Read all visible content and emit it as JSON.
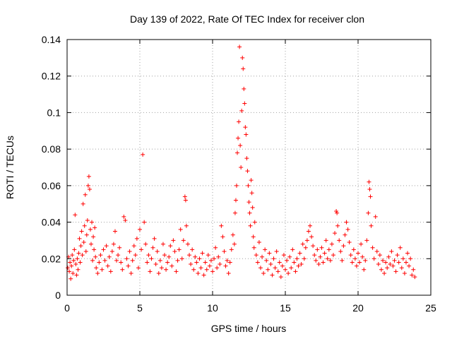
{
  "chart_data": {
    "type": "scatter",
    "title": "Day 139 of 2022, Rate Of TEC Index for receiver clon",
    "xlabel": "GPS time / hours",
    "ylabel": "ROTI / TECUs",
    "xlim": [
      0,
      25
    ],
    "ylim": [
      0,
      0.14
    ],
    "xticks": [
      0,
      5,
      10,
      15,
      20,
      25
    ],
    "yticks": [
      0,
      0.02,
      0.04,
      0.06,
      0.08,
      0.1,
      0.12,
      0.14
    ],
    "xtick_labels": [
      "0",
      "5",
      "10",
      "15",
      "20",
      "25"
    ],
    "ytick_labels": [
      "0",
      "0.02",
      "0.04",
      "0.06",
      "0.08",
      "0.1",
      "0.12",
      "0.14"
    ],
    "grid": true,
    "marker": "+",
    "marker_color": "#ff0000",
    "points": [
      [
        0.05,
        0.015
      ],
      [
        0.1,
        0.021
      ],
      [
        0.15,
        0.013
      ],
      [
        0.2,
        0.018
      ],
      [
        0.25,
        0.009
      ],
      [
        0.3,
        0.016
      ],
      [
        0.35,
        0.022
      ],
      [
        0.4,
        0.012
      ],
      [
        0.45,
        0.019
      ],
      [
        0.5,
        0.025
      ],
      [
        0.55,
        0.044
      ],
      [
        0.6,
        0.017
      ],
      [
        0.65,
        0.011
      ],
      [
        0.7,
        0.02
      ],
      [
        0.75,
        0.014
      ],
      [
        0.8,
        0.023
      ],
      [
        0.85,
        0.031
      ],
      [
        0.9,
        0.018
      ],
      [
        0.95,
        0.027
      ],
      [
        1.0,
        0.035
      ],
      [
        1.05,
        0.022
      ],
      [
        1.1,
        0.05
      ],
      [
        1.15,
        0.029
      ],
      [
        1.2,
        0.038
      ],
      [
        1.25,
        0.055
      ],
      [
        1.3,
        0.024
      ],
      [
        1.35,
        0.033
      ],
      [
        1.4,
        0.041
      ],
      [
        1.45,
        0.06
      ],
      [
        1.5,
        0.065
      ],
      [
        1.55,
        0.058
      ],
      [
        1.6,
        0.036
      ],
      [
        1.65,
        0.028
      ],
      [
        1.7,
        0.04
      ],
      [
        1.75,
        0.019
      ],
      [
        1.8,
        0.032
      ],
      [
        1.85,
        0.025
      ],
      [
        1.9,
        0.037
      ],
      [
        1.95,
        0.021
      ],
      [
        2.0,
        0.015
      ],
      [
        2.1,
        0.012
      ],
      [
        2.2,
        0.018
      ],
      [
        2.3,
        0.022
      ],
      [
        2.4,
        0.014
      ],
      [
        2.5,
        0.025
      ],
      [
        2.6,
        0.019
      ],
      [
        2.7,
        0.027
      ],
      [
        2.8,
        0.016
      ],
      [
        2.9,
        0.021
      ],
      [
        3.0,
        0.013
      ],
      [
        3.1,
        0.024
      ],
      [
        3.2,
        0.028
      ],
      [
        3.3,
        0.035
      ],
      [
        3.4,
        0.019
      ],
      [
        3.5,
        0.022
      ],
      [
        3.6,
        0.026
      ],
      [
        3.7,
        0.018
      ],
      [
        3.8,
        0.014
      ],
      [
        3.9,
        0.043
      ],
      [
        4.0,
        0.041
      ],
      [
        4.1,
        0.02
      ],
      [
        4.2,
        0.016
      ],
      [
        4.3,
        0.024
      ],
      [
        4.4,
        0.012
      ],
      [
        4.5,
        0.019
      ],
      [
        4.6,
        0.027
      ],
      [
        4.7,
        0.022
      ],
      [
        4.8,
        0.031
      ],
      [
        4.9,
        0.015
      ],
      [
        5.0,
        0.036
      ],
      [
        5.1,
        0.025
      ],
      [
        5.2,
        0.077
      ],
      [
        5.3,
        0.04
      ],
      [
        5.4,
        0.028
      ],
      [
        5.5,
        0.018
      ],
      [
        5.6,
        0.022
      ],
      [
        5.7,
        0.013
      ],
      [
        5.8,
        0.02
      ],
      [
        5.9,
        0.026
      ],
      [
        6.0,
        0.031
      ],
      [
        6.1,
        0.017
      ],
      [
        6.2,
        0.024
      ],
      [
        6.3,
        0.012
      ],
      [
        6.4,
        0.019
      ],
      [
        6.5,
        0.015
      ],
      [
        6.6,
        0.028
      ],
      [
        6.7,
        0.022
      ],
      [
        6.8,
        0.014
      ],
      [
        6.9,
        0.018
      ],
      [
        7.0,
        0.021
      ],
      [
        7.1,
        0.027
      ],
      [
        7.2,
        0.016
      ],
      [
        7.3,
        0.03
      ],
      [
        7.4,
        0.024
      ],
      [
        7.5,
        0.013
      ],
      [
        7.6,
        0.019
      ],
      [
        7.7,
        0.025
      ],
      [
        7.8,
        0.036
      ],
      [
        7.9,
        0.02
      ],
      [
        8.0,
        0.03
      ],
      [
        8.1,
        0.054
      ],
      [
        8.15,
        0.052
      ],
      [
        8.2,
        0.038
      ],
      [
        8.3,
        0.028
      ],
      [
        8.4,
        0.022
      ],
      [
        8.5,
        0.017
      ],
      [
        8.6,
        0.025
      ],
      [
        8.7,
        0.014
      ],
      [
        8.8,
        0.021
      ],
      [
        8.9,
        0.018
      ],
      [
        9.0,
        0.012
      ],
      [
        9.1,
        0.02
      ],
      [
        9.2,
        0.015
      ],
      [
        9.3,
        0.023
      ],
      [
        9.4,
        0.011
      ],
      [
        9.5,
        0.018
      ],
      [
        9.6,
        0.014
      ],
      [
        9.7,
        0.022
      ],
      [
        9.8,
        0.016
      ],
      [
        9.9,
        0.019
      ],
      [
        10.0,
        0.013
      ],
      [
        10.1,
        0.02
      ],
      [
        10.2,
        0.026
      ],
      [
        10.3,
        0.015
      ],
      [
        10.4,
        0.021
      ],
      [
        10.5,
        0.017
      ],
      [
        10.6,
        0.038
      ],
      [
        10.7,
        0.032
      ],
      [
        10.8,
        0.024
      ],
      [
        10.9,
        0.016
      ],
      [
        11.0,
        0.019
      ],
      [
        11.1,
        0.012
      ],
      [
        11.2,
        0.018
      ],
      [
        11.3,
        0.025
      ],
      [
        11.4,
        0.033
      ],
      [
        11.5,
        0.028
      ],
      [
        11.55,
        0.045
      ],
      [
        11.6,
        0.052
      ],
      [
        11.65,
        0.06
      ],
      [
        11.7,
        0.078
      ],
      [
        11.75,
        0.086
      ],
      [
        11.8,
        0.095
      ],
      [
        11.85,
        0.136
      ],
      [
        11.9,
        0.082
      ],
      [
        11.95,
        0.07
      ],
      [
        12.0,
        0.101
      ],
      [
        12.05,
        0.13
      ],
      [
        12.1,
        0.124
      ],
      [
        12.15,
        0.113
      ],
      [
        12.2,
        0.105
      ],
      [
        12.25,
        0.092
      ],
      [
        12.3,
        0.088
      ],
      [
        12.35,
        0.075
      ],
      [
        12.4,
        0.068
      ],
      [
        12.45,
        0.06
      ],
      [
        12.5,
        0.051
      ],
      [
        12.55,
        0.045
      ],
      [
        12.6,
        0.038
      ],
      [
        12.65,
        0.063
      ],
      [
        12.7,
        0.056
      ],
      [
        12.75,
        0.048
      ],
      [
        12.8,
        0.032
      ],
      [
        12.85,
        0.026
      ],
      [
        12.9,
        0.04
      ],
      [
        13.0,
        0.022
      ],
      [
        13.1,
        0.018
      ],
      [
        13.2,
        0.029
      ],
      [
        13.3,
        0.015
      ],
      [
        13.4,
        0.021
      ],
      [
        13.5,
        0.012
      ],
      [
        13.6,
        0.025
      ],
      [
        13.7,
        0.019
      ],
      [
        13.8,
        0.014
      ],
      [
        13.9,
        0.023
      ],
      [
        14.0,
        0.017
      ],
      [
        14.1,
        0.011
      ],
      [
        14.2,
        0.02
      ],
      [
        14.3,
        0.015
      ],
      [
        14.4,
        0.024
      ],
      [
        14.5,
        0.013
      ],
      [
        14.6,
        0.018
      ],
      [
        14.7,
        0.01
      ],
      [
        14.8,
        0.016
      ],
      [
        14.9,
        0.022
      ],
      [
        15.0,
        0.014
      ],
      [
        15.1,
        0.019
      ],
      [
        15.2,
        0.012
      ],
      [
        15.3,
        0.021
      ],
      [
        15.4,
        0.015
      ],
      [
        15.5,
        0.025
      ],
      [
        15.6,
        0.018
      ],
      [
        15.7,
        0.013
      ],
      [
        15.8,
        0.02
      ],
      [
        15.9,
        0.016
      ],
      [
        16.0,
        0.023
      ],
      [
        16.1,
        0.017
      ],
      [
        16.2,
        0.028
      ],
      [
        16.3,
        0.02
      ],
      [
        16.4,
        0.026
      ],
      [
        16.5,
        0.03
      ],
      [
        16.6,
        0.035
      ],
      [
        16.7,
        0.038
      ],
      [
        16.8,
        0.032
      ],
      [
        16.9,
        0.027
      ],
      [
        17.0,
        0.022
      ],
      [
        17.1,
        0.019
      ],
      [
        17.2,
        0.025
      ],
      [
        17.3,
        0.017
      ],
      [
        17.4,
        0.021
      ],
      [
        17.5,
        0.026
      ],
      [
        17.6,
        0.018
      ],
      [
        17.7,
        0.023
      ],
      [
        17.8,
        0.03
      ],
      [
        17.9,
        0.02
      ],
      [
        18.0,
        0.025
      ],
      [
        18.1,
        0.019
      ],
      [
        18.2,
        0.028
      ],
      [
        18.3,
        0.022
      ],
      [
        18.4,
        0.034
      ],
      [
        18.5,
        0.046
      ],
      [
        18.55,
        0.045
      ],
      [
        18.6,
        0.038
      ],
      [
        18.7,
        0.03
      ],
      [
        18.8,
        0.024
      ],
      [
        18.9,
        0.019
      ],
      [
        19.0,
        0.027
      ],
      [
        19.1,
        0.033
      ],
      [
        19.2,
        0.04
      ],
      [
        19.3,
        0.036
      ],
      [
        19.4,
        0.029
      ],
      [
        19.5,
        0.022
      ],
      [
        19.6,
        0.018
      ],
      [
        19.7,
        0.025
      ],
      [
        19.8,
        0.02
      ],
      [
        19.9,
        0.016
      ],
      [
        20.0,
        0.023
      ],
      [
        20.1,
        0.018
      ],
      [
        20.2,
        0.028
      ],
      [
        20.3,
        0.021
      ],
      [
        20.4,
        0.014
      ],
      [
        20.5,
        0.019
      ],
      [
        20.6,
        0.03
      ],
      [
        20.7,
        0.045
      ],
      [
        20.75,
        0.062
      ],
      [
        20.8,
        0.058
      ],
      [
        20.85,
        0.054
      ],
      [
        20.9,
        0.038
      ],
      [
        21.0,
        0.026
      ],
      [
        21.1,
        0.02
      ],
      [
        21.2,
        0.043
      ],
      [
        21.3,
        0.024
      ],
      [
        21.4,
        0.017
      ],
      [
        21.5,
        0.022
      ],
      [
        21.6,
        0.014
      ],
      [
        21.7,
        0.019
      ],
      [
        21.8,
        0.012
      ],
      [
        21.9,
        0.018
      ],
      [
        22.0,
        0.015
      ],
      [
        22.1,
        0.021
      ],
      [
        22.2,
        0.017
      ],
      [
        22.3,
        0.024
      ],
      [
        22.4,
        0.016
      ],
      [
        22.5,
        0.019
      ],
      [
        22.6,
        0.013
      ],
      [
        22.7,
        0.022
      ],
      [
        22.8,
        0.018
      ],
      [
        22.9,
        0.026
      ],
      [
        23.0,
        0.015
      ],
      [
        23.1,
        0.02
      ],
      [
        23.2,
        0.012
      ],
      [
        23.3,
        0.018
      ],
      [
        23.4,
        0.023
      ],
      [
        23.5,
        0.016
      ],
      [
        23.6,
        0.02
      ],
      [
        23.7,
        0.011
      ],
      [
        23.8,
        0.014
      ],
      [
        23.9,
        0.01
      ]
    ]
  }
}
